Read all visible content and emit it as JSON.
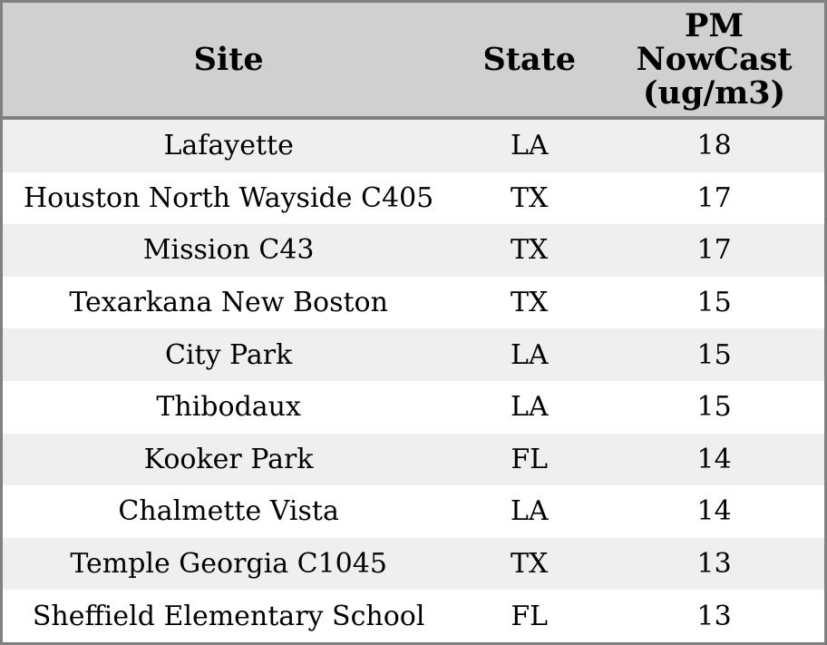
{
  "chart_data": {
    "type": "table",
    "columns": [
      "Site",
      "State",
      "PM NowCast (ug/m3)"
    ],
    "rows": [
      [
        "Lafayette",
        "LA",
        18
      ],
      [
        "Houston North Wayside C405",
        "TX",
        17
      ],
      [
        "Mission C43",
        "TX",
        17
      ],
      [
        "Texarkana New Boston",
        "TX",
        15
      ],
      [
        "City Park",
        "LA",
        15
      ],
      [
        "Thibodaux",
        "LA",
        15
      ],
      [
        "Kooker Park",
        "FL",
        14
      ],
      [
        "Chalmette Vista",
        "LA",
        14
      ],
      [
        "Temple Georgia C1045",
        "TX",
        13
      ],
      [
        "Sheffield Elementary School",
        "FL",
        13
      ]
    ],
    "layout": {
      "header_bg": "#d0d0d0",
      "row_alt_bg": "#efefef",
      "row_bg": "#ffffff",
      "border_color": "#808080",
      "text_color": "#000000",
      "cell_alignment": "center",
      "grid": "off",
      "row_striping": "odd-rows-shaded"
    }
  },
  "header_display": {
    "pm_lines": [
      "PM",
      "NowCast",
      "(ug/m3)"
    ]
  }
}
